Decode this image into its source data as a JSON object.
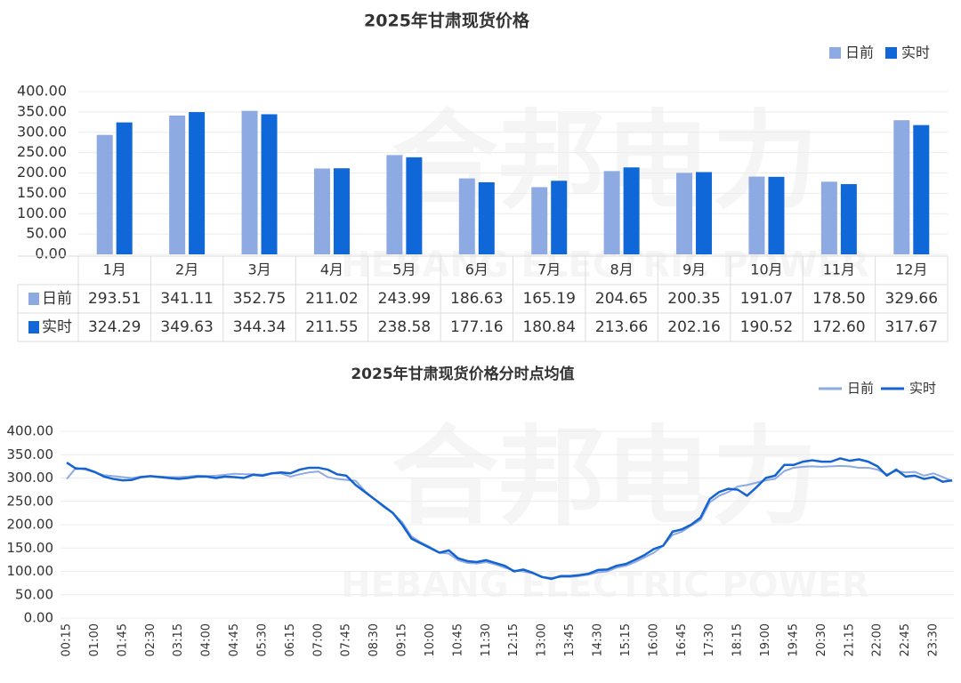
{
  "watermark": {
    "brand": "合邦电力",
    "sub": "HEBANG ELECTRIC POWER"
  },
  "chart_data": [
    {
      "type": "bar",
      "title": "2025年甘肃现货价格",
      "categories": [
        "1月",
        "2月",
        "3月",
        "4月",
        "5月",
        "6月",
        "7月",
        "8月",
        "9月",
        "10月",
        "11月",
        "12月"
      ],
      "series": [
        {
          "name": "日前",
          "color": "#8eaae3",
          "values": [
            293.51,
            341.11,
            352.75,
            211.02,
            243.99,
            186.63,
            165.19,
            204.65,
            200.35,
            191.07,
            178.5,
            329.66
          ],
          "value_labels": [
            "293.51",
            "341.11",
            "352.75",
            "211.02",
            "243.99",
            "186.63",
            "165.19",
            "204.65",
            "200.35",
            "191.07",
            "178.50",
            "329.66"
          ]
        },
        {
          "name": "实时",
          "color": "#0f67d8",
          "values": [
            324.29,
            349.63,
            344.34,
            211.55,
            238.58,
            177.16,
            180.84,
            213.66,
            202.16,
            190.52,
            172.6,
            317.67
          ],
          "value_labels": [
            "324.29",
            "349.63",
            "344.34",
            "211.55",
            "238.58",
            "177.16",
            "180.84",
            "213.66",
            "202.16",
            "190.52",
            "172.60",
            "317.67"
          ]
        }
      ],
      "ylim": [
        0,
        400
      ],
      "yticks": [
        {
          "value": 0,
          "label": "0.00"
        },
        {
          "value": 50,
          "label": "50.00"
        },
        {
          "value": 100,
          "label": "100.00"
        },
        {
          "value": 150,
          "label": "150.00"
        },
        {
          "value": 200,
          "label": "200.00"
        },
        {
          "value": 250,
          "label": "250.00"
        },
        {
          "value": 300,
          "label": "300.00"
        },
        {
          "value": 350,
          "label": "350.00"
        },
        {
          "value": 400,
          "label": "400.00"
        }
      ],
      "grid": true,
      "legend": "top-right"
    },
    {
      "type": "line",
      "title": "2025年甘肃现货价格分时点均值",
      "categories": [
        "00:15",
        null,
        null,
        "01:00",
        null,
        null,
        "01:45",
        null,
        null,
        "02:30",
        null,
        null,
        "03:15",
        null,
        null,
        "04:00",
        null,
        null,
        "04:45",
        null,
        null,
        "05:30",
        null,
        null,
        "06:15",
        null,
        null,
        "07:00",
        null,
        null,
        "07:45",
        null,
        null,
        "08:30",
        null,
        null,
        "09:15",
        null,
        null,
        "10:00",
        null,
        null,
        "10:45",
        null,
        null,
        "11:30",
        null,
        null,
        "12:15",
        null,
        null,
        "13:00",
        null,
        null,
        "13:45",
        null,
        null,
        "14:30",
        null,
        null,
        "15:15",
        null,
        null,
        "16:00",
        null,
        null,
        "16:45",
        null,
        null,
        "17:30",
        null,
        null,
        "18:15",
        null,
        null,
        "19:00",
        null,
        null,
        "19:45",
        null,
        null,
        "20:30",
        null,
        null,
        "21:15",
        null,
        null,
        "22:00",
        null,
        null,
        "22:45",
        null,
        null,
        "23:30",
        null,
        null
      ],
      "series": [
        {
          "name": "日前",
          "color": "#8eaae3",
          "values": [
            298,
            322,
            318,
            312,
            306,
            304,
            302,
            300,
            303,
            304,
            303,
            302,
            302,
            303,
            305,
            304,
            305,
            307,
            309,
            308,
            308,
            307,
            310,
            310,
            303,
            308,
            312,
            314,
            302,
            298,
            296,
            294,
            272,
            255,
            238,
            225,
            205,
            175,
            162,
            152,
            140,
            138,
            124,
            118,
            117,
            120,
            115,
            108,
            102,
            100,
            96,
            88,
            86,
            88,
            88,
            90,
            93,
            98,
            100,
            108,
            112,
            120,
            130,
            140,
            155,
            178,
            185,
            198,
            210,
            248,
            262,
            270,
            282,
            285,
            290,
            295,
            298,
            315,
            322,
            324,
            325,
            324,
            325,
            326,
            325,
            322,
            322,
            318,
            308,
            315,
            312,
            313,
            305,
            310,
            302,
            293
          ]
        },
        {
          "name": "实时",
          "color": "#1463d0",
          "values": [
            333,
            320,
            320,
            313,
            303,
            298,
            295,
            296,
            302,
            304,
            302,
            300,
            298,
            300,
            303,
            303,
            300,
            303,
            302,
            300,
            307,
            305,
            310,
            312,
            310,
            318,
            322,
            322,
            318,
            308,
            305,
            285,
            270,
            255,
            240,
            225,
            200,
            170,
            160,
            150,
            140,
            145,
            128,
            122,
            120,
            124,
            118,
            112,
            100,
            104,
            97,
            88,
            84,
            90,
            90,
            92,
            95,
            103,
            104,
            112,
            116,
            125,
            135,
            148,
            155,
            185,
            190,
            200,
            215,
            255,
            270,
            277,
            275,
            262,
            280,
            300,
            305,
            328,
            328,
            335,
            338,
            335,
            335,
            342,
            337,
            340,
            335,
            325,
            305,
            318,
            303,
            305,
            298,
            302,
            292,
            295
          ]
        }
      ],
      "ylim": [
        0,
        400
      ],
      "yticks": [
        {
          "value": 0,
          "label": "0.00"
        },
        {
          "value": 50,
          "label": "50.00"
        },
        {
          "value": 100,
          "label": "100.00"
        },
        {
          "value": 150,
          "label": "150.00"
        },
        {
          "value": 200,
          "label": "200.00"
        },
        {
          "value": 250,
          "label": "250.00"
        },
        {
          "value": 300,
          "label": "300.00"
        },
        {
          "value": 350,
          "label": "350.00"
        },
        {
          "value": 400,
          "label": "400.00"
        }
      ],
      "grid": true,
      "legend": "top-right"
    }
  ]
}
